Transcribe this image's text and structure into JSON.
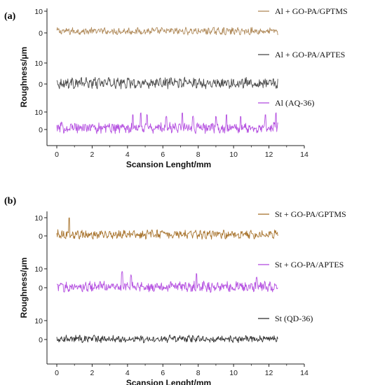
{
  "chart_data": [
    {
      "type": "line",
      "panel_label": "(a)",
      "xlabel": "Scansion Lenght/mm",
      "ylabel": "Roughness/μm",
      "xlim": [
        0,
        14
      ],
      "x_ticks": [
        "0",
        "2",
        "4",
        "6",
        "8",
        "10",
        "12",
        "14"
      ],
      "x_extent": [
        0,
        12.5
      ],
      "sub_y_ticks": [
        "0",
        "10"
      ],
      "legend_placement": "right of each trace",
      "series": [
        {
          "name": "Al + GO-PA/GPTMS",
          "color": "#b08a5a",
          "ylim": [
            -5,
            13
          ],
          "baseline": 0.8,
          "noise": 1.4,
          "spikes": []
        },
        {
          "name": "Al + GO-PA/APTES",
          "color": "#4a4a4a",
          "ylim": [
            -5,
            13
          ],
          "baseline": 0.5,
          "noise": 2.2,
          "spikes": []
        },
        {
          "name": "Al (AQ-36)",
          "color": "#b44fe0",
          "ylim": [
            -5,
            13
          ],
          "baseline": 1.0,
          "noise": 2.6,
          "spikes": [
            [
              4.3,
              9
            ],
            [
              4.75,
              10
            ],
            [
              5.1,
              9
            ],
            [
              6.2,
              8
            ],
            [
              7.1,
              10
            ],
            [
              7.7,
              8
            ],
            [
              9.0,
              8
            ],
            [
              9.6,
              9
            ],
            [
              10.4,
              8
            ],
            [
              11.8,
              9
            ],
            [
              12.4,
              10
            ]
          ]
        }
      ]
    },
    {
      "type": "line",
      "panel_label": "(b)",
      "xlabel": "Scansion Lenght/mm",
      "ylabel": "Roughness/μm",
      "xlim": [
        0,
        14
      ],
      "x_ticks": [
        "0",
        "2",
        "4",
        "6",
        "8",
        "10",
        "12",
        "14"
      ],
      "x_extent": [
        0,
        12.5
      ],
      "sub_y_ticks": [
        "0",
        "10"
      ],
      "legend_placement": "right of each trace",
      "series": [
        {
          "name": "St + GO-PA/GPTMS",
          "color": "#a8742e",
          "ylim": [
            -5,
            13
          ],
          "baseline": 0.8,
          "noise": 2.0,
          "spikes": [
            [
              0.7,
              10.5
            ]
          ]
        },
        {
          "name": "St + GO-PA/APTES",
          "color": "#b44fe0",
          "ylim": [
            -5,
            13
          ],
          "baseline": 0.5,
          "noise": 2.3,
          "spikes": [
            [
              3.7,
              9
            ],
            [
              4.2,
              7
            ],
            [
              7.9,
              8
            ],
            [
              11.3,
              6
            ]
          ]
        },
        {
          "name": "St (QD-36)",
          "color": "#333333",
          "ylim": [
            -5,
            13
          ],
          "baseline": 0.3,
          "noise": 1.6,
          "spikes": []
        }
      ]
    }
  ]
}
